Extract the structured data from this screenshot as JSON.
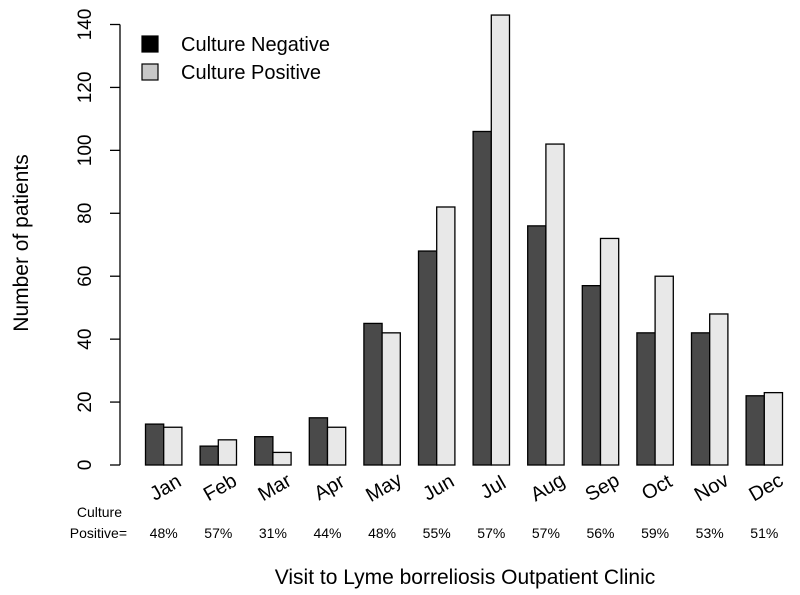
{
  "chart_data": {
    "type": "bar",
    "title": "",
    "xlabel": "Visit to Lyme borreliosis Outpatient Clinic",
    "ylabel": "Number of patients",
    "ylim": [
      0,
      140
    ],
    "yticks": [
      "0",
      "20",
      "40",
      "60",
      "80",
      "100",
      "120",
      "140"
    ],
    "categories": [
      "Jan",
      "Feb",
      "Mar",
      "Apr",
      "May",
      "Jun",
      "Jul",
      "Aug",
      "Sep",
      "Oct",
      "Nov",
      "Dec"
    ],
    "series": [
      {
        "name": "Culture Negative",
        "color": "#4a4a4a",
        "legend_color": "#000000",
        "values": [
          13,
          6,
          9,
          15,
          45,
          68,
          106,
          76,
          57,
          42,
          42,
          22
        ]
      },
      {
        "name": "Culture Positive",
        "color": "#e8e8e8",
        "legend_color": "#c8c8c8",
        "values": [
          12,
          8,
          4,
          12,
          42,
          82,
          143,
          102,
          72,
          60,
          48,
          23
        ]
      }
    ],
    "legend_position": "top-left",
    "percent_row_label_line1": "Culture",
    "percent_row_label_line2": "Positive=",
    "percent_positive": [
      "48%",
      "57%",
      "31%",
      "44%",
      "48%",
      "55%",
      "57%",
      "57%",
      "56%",
      "59%",
      "53%",
      "51%"
    ]
  }
}
